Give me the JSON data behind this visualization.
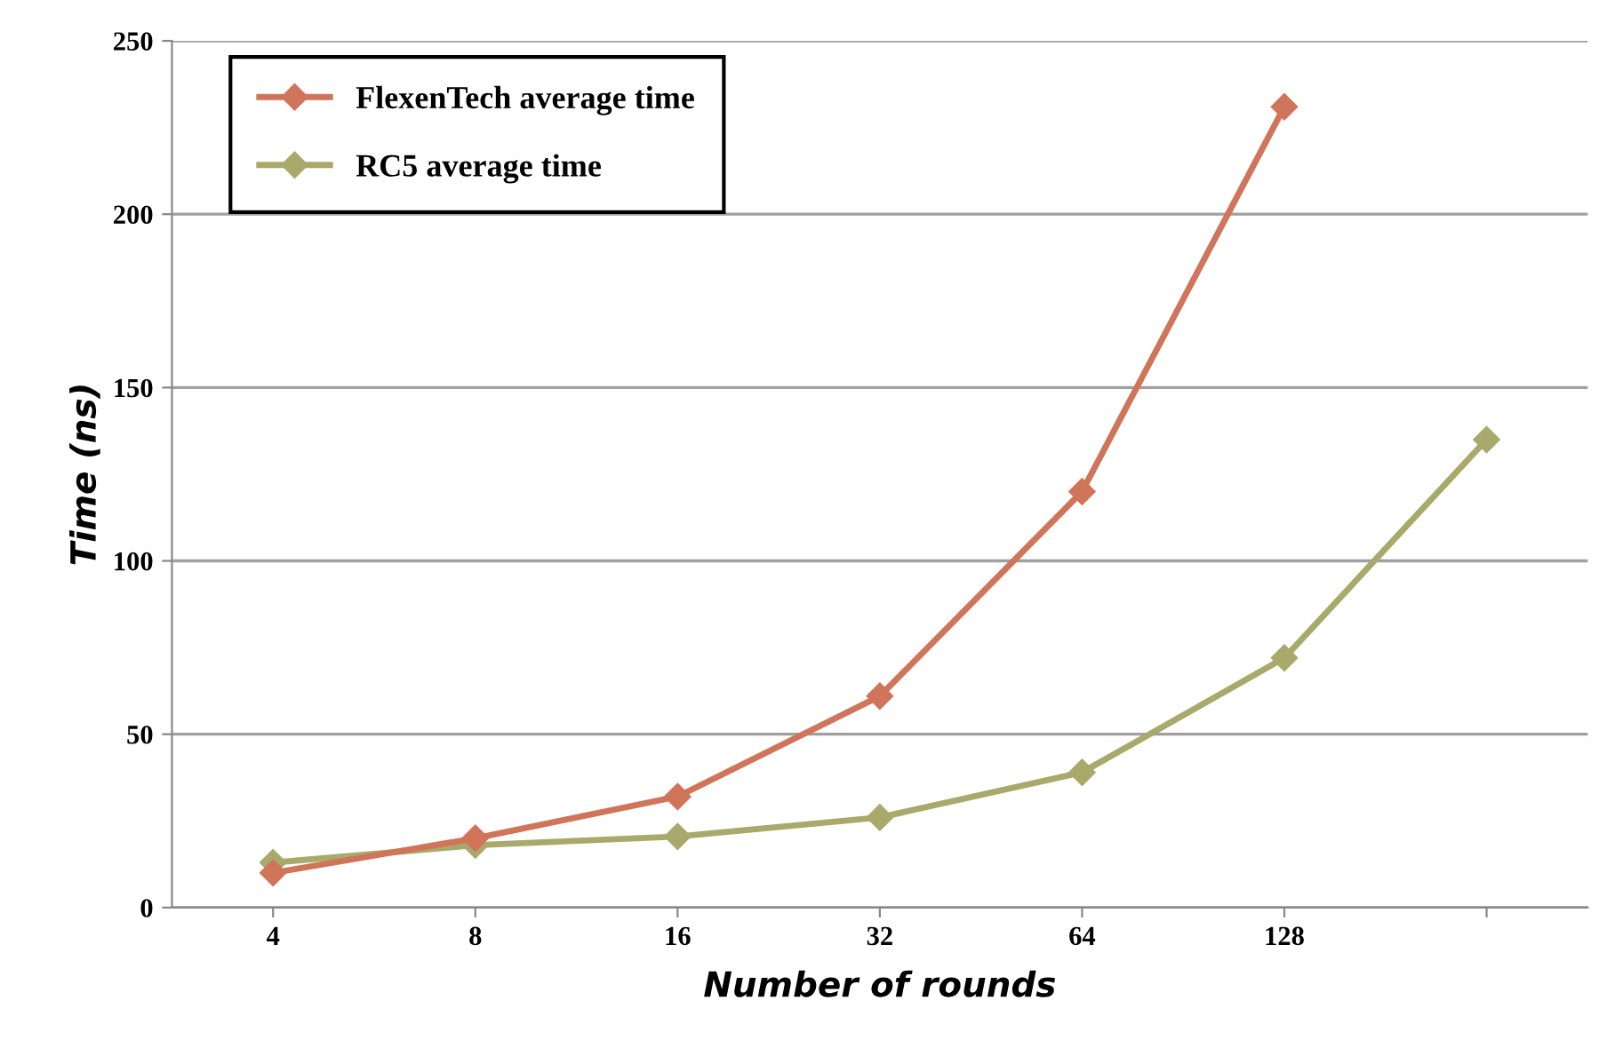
{
  "chart_data": {
    "type": "line",
    "xlabel": "Number of rounds",
    "ylabel": "Time (ns)",
    "categories": [
      "4",
      "8",
      "16",
      "32",
      "64",
      "128",
      null
    ],
    "series": [
      {
        "name": "FlexenTech average time",
        "color": "#d0745a",
        "values": [
          10,
          20,
          32,
          61,
          120,
          231,
          null
        ]
      },
      {
        "name": "RC5 average time",
        "color": "#a9a96c",
        "values": [
          13,
          18,
          20.5,
          26,
          39,
          72,
          135
        ]
      }
    ],
    "ylim": [
      0,
      250
    ],
    "yticks": [
      0,
      50,
      100,
      150,
      200,
      250
    ],
    "grid": "y",
    "legend": "top left",
    "marker": "diamond",
    "line_style": "solid"
  }
}
